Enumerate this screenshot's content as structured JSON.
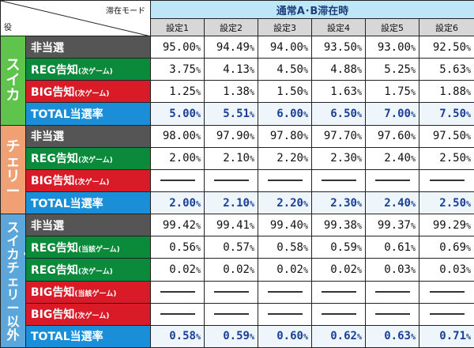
{
  "header": {
    "mode_label": "滞在モード",
    "role_label": "役",
    "mode_title": "通常A･B滞在時",
    "settings": [
      "設定1",
      "設定2",
      "設定3",
      "設定4",
      "設定5",
      "設定6"
    ]
  },
  "groups": [
    {
      "name": "スイカ",
      "color": "#5ec44c",
      "rows": [
        {
          "main": "非当選",
          "sub": "",
          "kind": "nonhit",
          "values": [
            "95.00",
            "94.49",
            "94.00",
            "93.50",
            "93.00",
            "92.50"
          ]
        },
        {
          "main": "REG告知",
          "sub": "(次ゲーム)",
          "kind": "reg",
          "values": [
            "3.75",
            "4.13",
            "4.50",
            "4.88",
            "5.25",
            "5.63"
          ]
        },
        {
          "main": "BIG告知",
          "sub": "(次ゲーム)",
          "kind": "big",
          "values": [
            "1.25",
            "1.38",
            "1.50",
            "1.63",
            "1.75",
            "1.88"
          ]
        },
        {
          "main": "TOTAL当選率",
          "sub": "",
          "kind": "total",
          "values": [
            "5.00",
            "5.51",
            "6.00",
            "6.50",
            "7.00",
            "7.50"
          ]
        }
      ]
    },
    {
      "name": "チェリー",
      "color": "#f0a072",
      "rows": [
        {
          "main": "非当選",
          "sub": "",
          "kind": "nonhit",
          "values": [
            "98.00",
            "97.90",
            "97.80",
            "97.70",
            "97.60",
            "97.50"
          ]
        },
        {
          "main": "REG告知",
          "sub": "(次ゲーム)",
          "kind": "reg",
          "values": [
            "2.00",
            "2.10",
            "2.20",
            "2.30",
            "2.40",
            "2.50"
          ]
        },
        {
          "main": "BIG告知",
          "sub": "(次ゲーム)",
          "kind": "big",
          "values": [
            null,
            null,
            null,
            null,
            null,
            null
          ]
        },
        {
          "main": "TOTAL当選率",
          "sub": "",
          "kind": "total",
          "values": [
            "2.00",
            "2.10",
            "2.20",
            "2.30",
            "2.40",
            "2.50"
          ]
        }
      ]
    },
    {
      "name": "スイカ・チェリー以外",
      "color": "#5ba7dc",
      "rows": [
        {
          "main": "非当選",
          "sub": "",
          "kind": "nonhit",
          "values": [
            "99.42",
            "99.41",
            "99.40",
            "99.38",
            "99.37",
            "99.29"
          ]
        },
        {
          "main": "REG告知",
          "sub": "(当該ゲーム)",
          "kind": "reg",
          "values": [
            "0.56",
            "0.57",
            "0.58",
            "0.59",
            "0.61",
            "0.69"
          ]
        },
        {
          "main": "REG告知",
          "sub": "(次ゲーム)",
          "kind": "reg",
          "values": [
            "0.02",
            "0.02",
            "0.02",
            "0.02",
            "0.03",
            "0.03"
          ]
        },
        {
          "main": "BIG告知",
          "sub": "(当該ゲーム)",
          "kind": "big",
          "values": [
            null,
            null,
            null,
            null,
            null,
            null
          ]
        },
        {
          "main": "BIG告知",
          "sub": "(次ゲーム)",
          "kind": "big",
          "values": [
            null,
            null,
            null,
            null,
            null,
            null
          ]
        },
        {
          "main": "TOTAL当選率",
          "sub": "",
          "kind": "total",
          "values": [
            "0.58",
            "0.59",
            "0.60",
            "0.62",
            "0.63",
            "0.71"
          ]
        }
      ]
    }
  ],
  "unit": "%"
}
